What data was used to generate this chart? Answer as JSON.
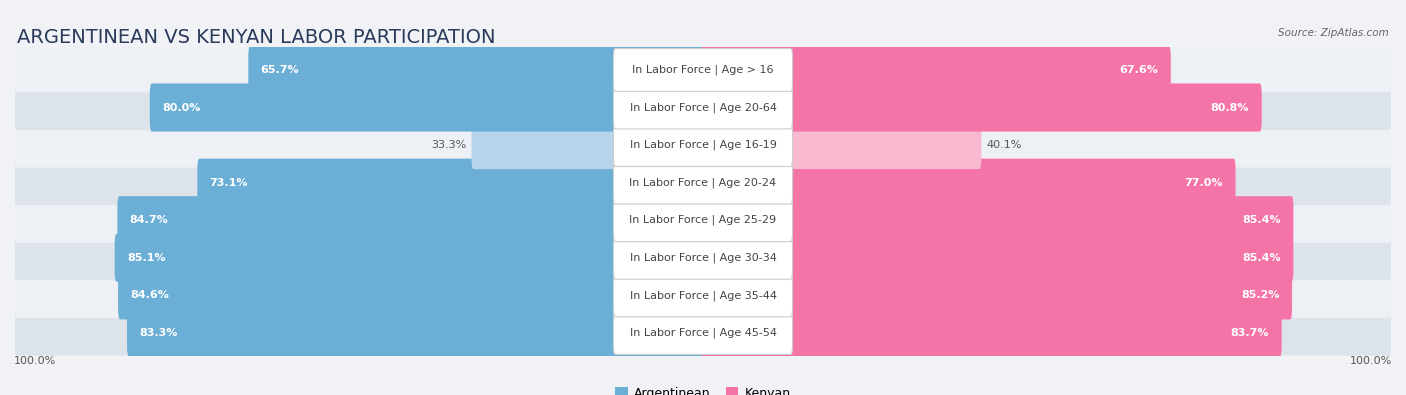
{
  "title": "ARGENTINEAN VS KENYAN LABOR PARTICIPATION",
  "source": "Source: ZipAtlas.com",
  "categories": [
    "In Labor Force | Age > 16",
    "In Labor Force | Age 20-64",
    "In Labor Force | Age 16-19",
    "In Labor Force | Age 20-24",
    "In Labor Force | Age 25-29",
    "In Labor Force | Age 30-34",
    "In Labor Force | Age 35-44",
    "In Labor Force | Age 45-54"
  ],
  "argentinean_values": [
    65.7,
    80.0,
    33.3,
    73.1,
    84.7,
    85.1,
    84.6,
    83.3
  ],
  "kenyan_values": [
    67.6,
    80.8,
    40.1,
    77.0,
    85.4,
    85.4,
    85.2,
    83.7
  ],
  "max_value": 100.0,
  "argentinean_color": "#6baed6",
  "argentinean_color_light": "#b8d4ea",
  "kenyan_color": "#f574a8",
  "kenyan_color_light": "#f8b8d0",
  "row_bg_dark": "#dde3ea",
  "row_bg_light": "#edf1f5",
  "label_bg_color": "#ffffff",
  "title_fontsize": 14,
  "label_fontsize": 8,
  "value_fontsize": 8,
  "legend_fontsize": 9,
  "axis_label_fontsize": 8
}
